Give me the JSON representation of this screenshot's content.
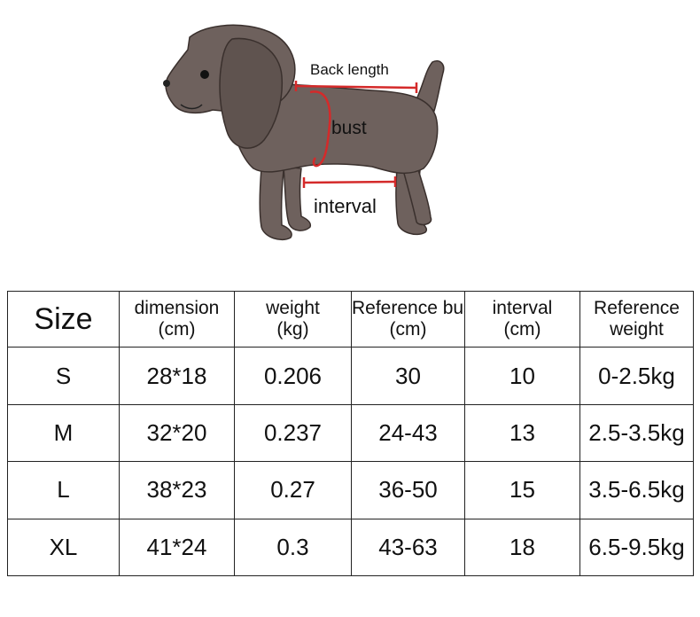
{
  "diagram": {
    "labels": {
      "back_length": "Back length",
      "bust": "bust",
      "interval": "interval"
    },
    "colors": {
      "dog_body": "#6e615d",
      "dog_outline": "#3a302d",
      "measure_line": "#d42a2a"
    }
  },
  "table": {
    "headers": [
      {
        "line1": "Size",
        "line2": ""
      },
      {
        "line1": "dimension",
        "line2": "(cm)"
      },
      {
        "line1": "weight",
        "line2": "(kg)"
      },
      {
        "line1": "Reference bust",
        "line2": "(cm)"
      },
      {
        "line1": "interval",
        "line2": "(cm)"
      },
      {
        "line1": "Reference",
        "line2": "weight"
      }
    ],
    "rows": [
      {
        "size": "S",
        "dimension": "28*18",
        "weight": "0.206",
        "bust": "30",
        "interval": "10",
        "ref_weight": "0-2.5kg"
      },
      {
        "size": "M",
        "dimension": "32*20",
        "weight": "0.237",
        "bust": "24-43",
        "interval": "13",
        "ref_weight": "2.5-3.5kg"
      },
      {
        "size": "L",
        "dimension": "38*23",
        "weight": "0.27",
        "bust": "36-50",
        "interval": "15",
        "ref_weight": "3.5-6.5kg"
      },
      {
        "size": "XL",
        "dimension": "41*24",
        "weight": "0.3",
        "bust": "43-63",
        "interval": "18",
        "ref_weight": "6.5-9.5kg"
      }
    ]
  }
}
